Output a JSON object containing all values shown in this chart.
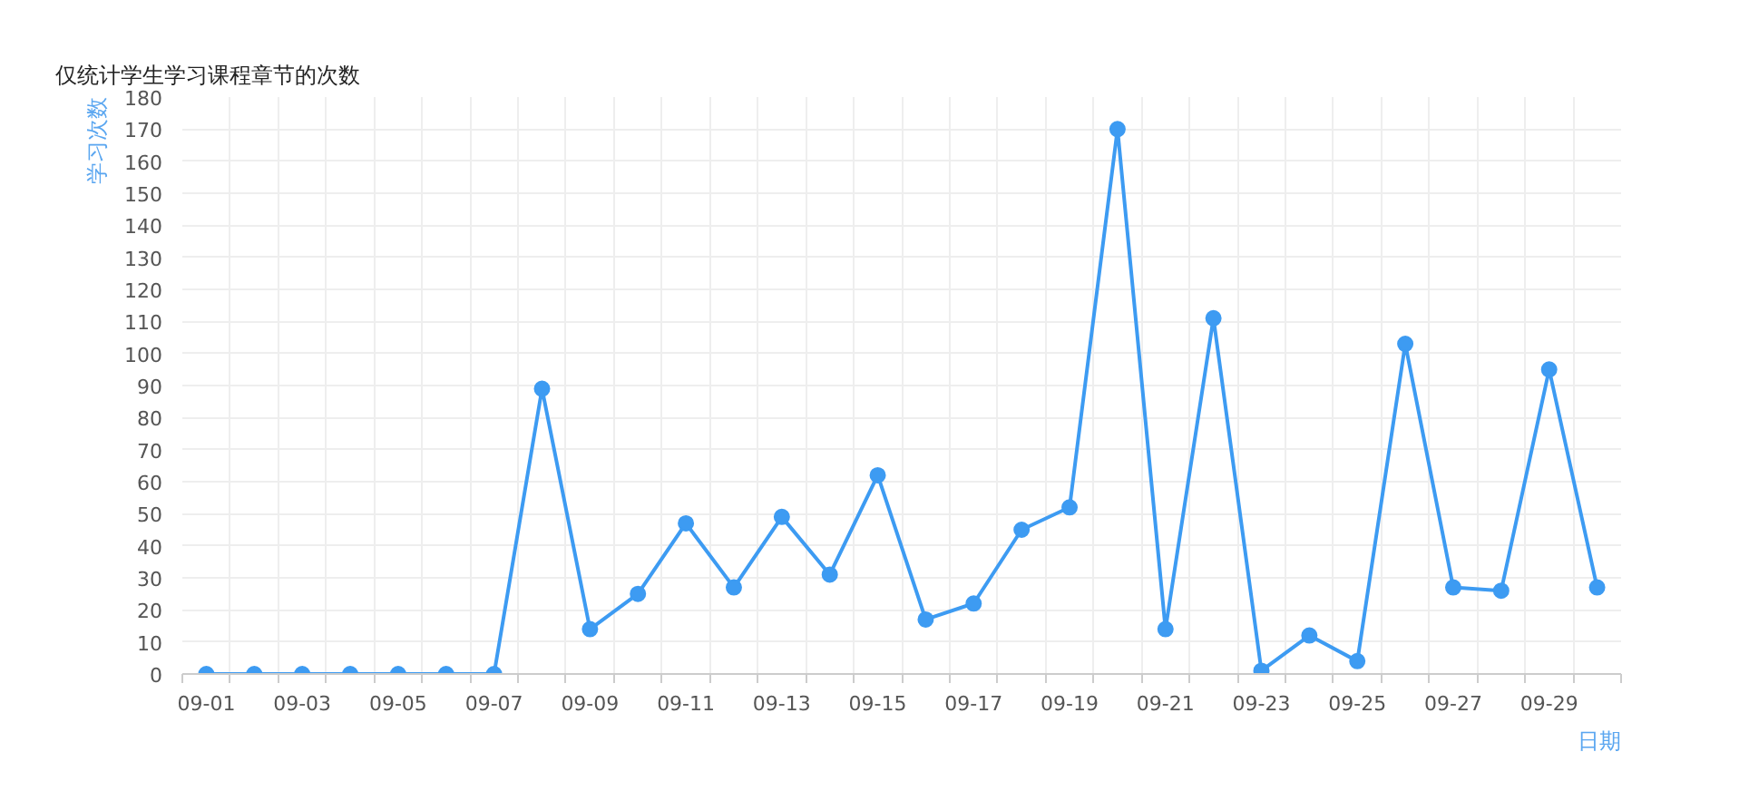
{
  "chart_data": {
    "type": "line",
    "title": "仅统计学生学习课程章节的次数",
    "xlabel": "日期",
    "ylabel": "学习次数",
    "categories": [
      "09-01",
      null,
      "09-03",
      null,
      "09-05",
      null,
      "09-07",
      null,
      "09-09",
      null,
      "09-11",
      null,
      "09-13",
      null,
      "09-15",
      null,
      "09-17",
      null,
      "09-19",
      null,
      "09-21",
      null,
      "09-23",
      null,
      "09-25",
      null,
      "09-27",
      null,
      "09-29",
      null
    ],
    "series": [
      {
        "color": "#3d9bf2",
        "values": [
          0,
          0,
          0,
          0,
          0,
          0,
          0,
          89,
          14,
          25,
          47,
          27,
          49,
          31,
          62,
          17,
          22,
          45,
          52,
          170,
          14,
          111,
          1,
          12,
          4,
          103,
          27,
          26,
          95,
          27
        ]
      }
    ],
    "ylim": [
      0,
      180
    ],
    "yticks": [
      0,
      10,
      20,
      30,
      40,
      50,
      60,
      70,
      80,
      90,
      100,
      110,
      120,
      130,
      140,
      150,
      160,
      170,
      180
    ],
    "grid": true,
    "marker": "circle",
    "line_style": "solid"
  }
}
